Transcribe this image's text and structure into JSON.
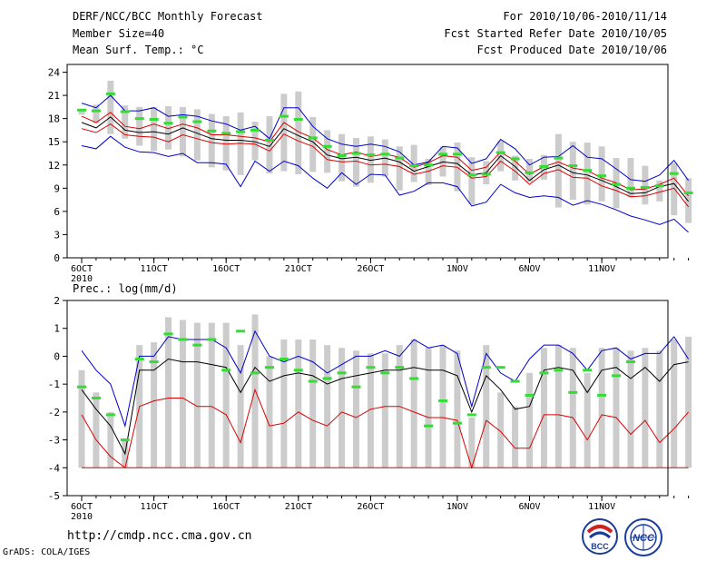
{
  "header": {
    "title": "DERF/NCC/BCC Monthly Forecast",
    "member_size": "Member Size=40",
    "variable1": "Mean Surf. Temp.: °C",
    "period": "For 2010/10/06-2010/11/14",
    "fcst_started": "Fcst Started Refer Date 2010/10/05",
    "fcst_produced": "Fcst Produced Date 2010/10/06"
  },
  "footer": {
    "url": "http://cmdp.ncc.cma.gov.cn",
    "grads": "GrADS: COLA/IGES"
  },
  "logos": {
    "bcc": "BCC",
    "ncc": "NCC"
  },
  "colors": {
    "max": "#0000cc",
    "min": "#0000cc",
    "mean": "#000000",
    "spread": "#dd0000",
    "bar": "#cccccc",
    "obs": "#33dd33",
    "low": "#dd0000"
  },
  "chart_data": [
    {
      "type": "line",
      "title": "Mean Surf. Temp.: °C",
      "ylim": [
        0,
        25
      ],
      "yticks": [
        0,
        3,
        6,
        9,
        12,
        15,
        18,
        21,
        24
      ],
      "xtick_labels": [
        "6OCT",
        "11OCT",
        "16OCT",
        "21OCT",
        "26OCT",
        "1NOV",
        "6NOV",
        "11NOV"
      ],
      "xtick_days": [
        1,
        6,
        11,
        16,
        21,
        27,
        32,
        37
      ],
      "year_label": "2010",
      "days": 40,
      "series": [
        {
          "name": "max",
          "values": [
            20,
            19.4,
            21,
            19,
            19,
            19.4,
            18.3,
            18.5,
            18.3,
            17.7,
            17.3,
            16.5,
            17,
            15.4,
            19.4,
            19.4,
            17,
            15.4,
            14.7,
            14.4,
            14.7,
            14.4,
            13.7,
            12,
            12.4,
            14.4,
            14.2,
            12.2,
            12.8,
            15.3,
            14.1,
            12,
            13,
            13.1,
            14.5,
            13,
            12.8,
            11.5,
            10.1,
            9.9,
            10.7,
            12.6,
            10
          ]
        },
        {
          "name": "upper",
          "values": [
            18.3,
            17.5,
            18.8,
            17,
            16.7,
            17.3,
            16.7,
            17.3,
            16.8,
            15.9,
            15.9,
            15.7,
            15.5,
            15,
            17.5,
            16.3,
            15.5,
            14,
            13.3,
            13.7,
            13.1,
            13.4,
            13,
            11.7,
            12.3,
            13.2,
            13,
            11.3,
            11.7,
            13.7,
            12.5,
            10.8,
            11.8,
            12.4,
            11.6,
            11.3,
            10.3,
            9.7,
            8.8,
            8.9,
            9.5,
            10.3,
            8
          ]
        },
        {
          "name": "mean",
          "values": [
            17.5,
            16.8,
            18.2,
            16.5,
            16.2,
            16.3,
            16,
            16.8,
            16.1,
            15.4,
            15.2,
            15.2,
            15,
            14.4,
            16.7,
            15.8,
            15,
            13.3,
            12.8,
            13,
            12.6,
            12.9,
            12.4,
            11.2,
            11.8,
            12.4,
            12.2,
            10.7,
            11,
            13.2,
            11.8,
            10,
            11.4,
            12,
            11,
            10.7,
            10,
            9.2,
            8.3,
            8.4,
            9.2,
            9.6,
            7.3
          ]
        },
        {
          "name": "lower",
          "values": [
            16.7,
            16.2,
            17.3,
            15.9,
            15.7,
            15.6,
            15,
            15.9,
            15.4,
            14.9,
            14.7,
            14.8,
            14.7,
            13.8,
            16,
            15.1,
            14.4,
            12.7,
            12.4,
            12.5,
            12,
            12.1,
            11.8,
            10.8,
            11.2,
            11.9,
            11.7,
            10.3,
            10.5,
            12.5,
            11.2,
            9.5,
            10.9,
            11.4,
            10.4,
            10.3,
            9.3,
            8.7,
            7.9,
            8,
            8.5,
            9,
            6.6
          ]
        },
        {
          "name": "min",
          "values": [
            14.5,
            14.1,
            15.7,
            14.3,
            13.7,
            13.6,
            13.1,
            13.5,
            12.3,
            12.3,
            12.1,
            9.2,
            12.5,
            11.2,
            12.5,
            11.9,
            10.3,
            9,
            11,
            9.5,
            10.8,
            10.7,
            8.1,
            8.6,
            9.7,
            9.7,
            9.2,
            6.7,
            7.2,
            9.5,
            8.4,
            7.8,
            8,
            7.8,
            6.8,
            7.4,
            6.9,
            6.2,
            5.4,
            4.9,
            4.3,
            5,
            3.3
          ]
        }
      ],
      "bars": [
        [
          18.5,
          19
        ],
        [
          17.4,
          19.8
        ],
        [
          16,
          22.9
        ],
        [
          15.4,
          19.7
        ],
        [
          14.5,
          19.5
        ],
        [
          13.8,
          19.5
        ],
        [
          14,
          19.6
        ],
        [
          13.1,
          19.5
        ],
        [
          12.6,
          19.2
        ],
        [
          11.7,
          18.6
        ],
        [
          11.3,
          18.3
        ],
        [
          10.7,
          18.8
        ],
        [
          12.6,
          17.6
        ],
        [
          10.9,
          18.3
        ],
        [
          11.2,
          21.2
        ],
        [
          10.8,
          21.5
        ],
        [
          11.1,
          18.2
        ],
        [
          11,
          16.5
        ],
        [
          9.9,
          16
        ],
        [
          9.2,
          15.5
        ],
        [
          9.7,
          15.7
        ],
        [
          10.5,
          15.3
        ],
        [
          8.7,
          14.4
        ],
        [
          9.8,
          14.6
        ],
        [
          9.4,
          12.8
        ],
        [
          10.5,
          14.4
        ],
        [
          8.6,
          14.9
        ],
        [
          6.9,
          13
        ],
        [
          9.5,
          12.5
        ],
        [
          11.2,
          15.1
        ],
        [
          10,
          13.2
        ],
        [
          9.8,
          12.8
        ],
        [
          10.1,
          13.3
        ],
        [
          6.5,
          16
        ],
        [
          7.5,
          15
        ],
        [
          6.9,
          14.9
        ],
        [
          7.3,
          14.4
        ],
        [
          6.4,
          12.9
        ],
        [
          7.8,
          12.9
        ],
        [
          6.9,
          11.9
        ],
        [
          7.3,
          10
        ],
        [
          5.5,
          12.3
        ],
        [
          4.5,
          10.3
        ]
      ],
      "obs": [
        19.1,
        19,
        21.2,
        18.9,
        18,
        17.9,
        17.4,
        18.2,
        17.6,
        16.4,
        16.1,
        16.3,
        16.5,
        15.2,
        18.3,
        17.9,
        15.5,
        14.4,
        13.2,
        13.5,
        13.3,
        13.4,
        12.9,
        11.9,
        12,
        13.4,
        13.4,
        10.7,
        10.8,
        13.6,
        12.8,
        11,
        11.8,
        12.9,
        11.9,
        11.3,
        10.6,
        9.5,
        9,
        9.1,
        9.3,
        10.9,
        8.4
      ]
    },
    {
      "type": "line",
      "title": "Prec.: log(mm/d)",
      "ylim": [
        -5,
        2
      ],
      "yticks": [
        -5,
        -4,
        -3,
        -2,
        -1,
        0,
        1,
        2
      ],
      "xtick_labels": [
        "6OCT",
        "11OCT",
        "16OCT",
        "21OCT",
        "26OCT",
        "1NOV",
        "6NOV",
        "11NOV"
      ],
      "xtick_days": [
        1,
        6,
        11,
        16,
        21,
        27,
        32,
        37
      ],
      "year_label": "2010",
      "days": 40,
      "series": [
        {
          "name": "max",
          "values": [
            0.2,
            -0.5,
            -1,
            -2.5,
            0,
            0,
            0.7,
            0.6,
            0.6,
            0.6,
            0.3,
            -0.6,
            0.9,
            0,
            -0.2,
            0,
            -0.2,
            -0.6,
            -0.3,
            0,
            0,
            0.2,
            0,
            0.6,
            0.3,
            0.4,
            0.1,
            -1.8,
            0.1,
            -0.6,
            -0.9,
            -0.1,
            0.4,
            0.4,
            0.1,
            -0.5,
            0.2,
            0.3,
            -0.1,
            0.1,
            0.1,
            0.7,
            -0.1
          ]
        },
        {
          "name": "mean",
          "values": [
            -1.2,
            -1.9,
            -2.5,
            -3.5,
            -0.5,
            -0.5,
            -0.1,
            -0.2,
            -0.2,
            -0.3,
            -0.4,
            -1.3,
            -0.4,
            -0.9,
            -0.7,
            -0.6,
            -0.7,
            -1,
            -0.8,
            -0.7,
            -0.6,
            -0.5,
            -0.5,
            -0.4,
            -0.5,
            -0.5,
            -0.7,
            -2,
            -0.7,
            -1.2,
            -1.9,
            -1.8,
            -0.5,
            -0.4,
            -0.5,
            -1.3,
            -0.5,
            -0.4,
            -0.8,
            -0.4,
            -0.9,
            -0.3,
            -0.2
          ]
        },
        {
          "name": "spread",
          "values": [
            -2.1,
            -3,
            -3.6,
            -4,
            -1.8,
            -1.6,
            -1.5,
            -1.5,
            -1.8,
            -1.8,
            -2.1,
            -3.1,
            -1.2,
            -2.5,
            -2.4,
            -2,
            -2.3,
            -2.5,
            -2,
            -2.2,
            -1.9,
            -1.8,
            -1.8,
            -2,
            -2.2,
            -2.2,
            -2.3,
            -4,
            -2.3,
            -2.7,
            -3.3,
            -3.3,
            -2.1,
            -2.1,
            -2.2,
            -3,
            -2.1,
            -2.2,
            -2.8,
            -2.3,
            -3.1,
            -2.6,
            -2
          ]
        },
        {
          "name": "low",
          "values": [
            -4,
            -4,
            -4,
            -4,
            -4,
            -4,
            -4,
            -4,
            -4,
            -4,
            -4,
            -4,
            -4,
            -4,
            -4,
            -4,
            -4,
            -4,
            -4,
            -4,
            -4,
            -4,
            -4,
            -4,
            -4,
            -4,
            -4,
            -4,
            -4,
            -4,
            -4,
            -4,
            -4,
            -4,
            -4,
            -4,
            -4,
            -4,
            -4,
            -4,
            -4,
            -4,
            -4
          ]
        }
      ],
      "bars": [
        [
          -4,
          -0.5
        ],
        [
          -4,
          -1.3
        ],
        [
          -4,
          -2
        ],
        [
          -4,
          -3
        ],
        [
          -4,
          0.4
        ],
        [
          -4,
          0.5
        ],
        [
          -4,
          1.4
        ],
        [
          -4,
          1.3
        ],
        [
          -4,
          1.2
        ],
        [
          -4,
          1.2
        ],
        [
          -4,
          1.2
        ],
        [
          -4,
          0.4
        ],
        [
          -4,
          1.5
        ],
        [
          -4,
          0
        ],
        [
          -4,
          0.6
        ],
        [
          -4,
          0.6
        ],
        [
          -4,
          0.6
        ],
        [
          -4,
          0.4
        ],
        [
          -4,
          0.3
        ],
        [
          -4,
          0.2
        ],
        [
          -4,
          0.1
        ],
        [
          -4,
          0.1
        ],
        [
          -4,
          0.4
        ],
        [
          -4,
          0.6
        ],
        [
          -4,
          0.3
        ],
        [
          -4,
          0.4
        ],
        [
          -4,
          0.2
        ],
        [
          -4,
          -2.2
        ],
        [
          -4,
          0.4
        ],
        [
          -4,
          -1.3
        ],
        [
          -4,
          -1.8
        ],
        [
          -4,
          -0.6
        ],
        [
          -4,
          0.3
        ],
        [
          -4,
          0.4
        ],
        [
          -4,
          0.3
        ],
        [
          -4,
          -0.6
        ],
        [
          -4,
          0.3
        ],
        [
          -4,
          0.3
        ],
        [
          -4,
          0.2
        ],
        [
          -4,
          0.3
        ],
        [
          -4,
          0.2
        ],
        [
          -4,
          0.6
        ],
        [
          -4,
          0.7
        ]
      ],
      "obs": [
        -1.1,
        -1.5,
        -2.1,
        -3,
        -0.1,
        -0.2,
        0.8,
        0.6,
        0.4,
        0.6,
        -0.5,
        0.9,
        -0.6,
        -0.4,
        -0.1,
        -0.5,
        -0.9,
        -0.8,
        -0.6,
        -1.1,
        -0.4,
        -0.6,
        -0.4,
        -0.8,
        -2.5,
        -1.6,
        -2.4,
        -2.1,
        -0.4,
        -0.4,
        -0.9,
        -1.4,
        -0.6,
        -0.5,
        -1.3,
        -0.5,
        -1.4,
        -0.7,
        -0.2,
        null,
        null,
        null,
        null
      ]
    }
  ]
}
